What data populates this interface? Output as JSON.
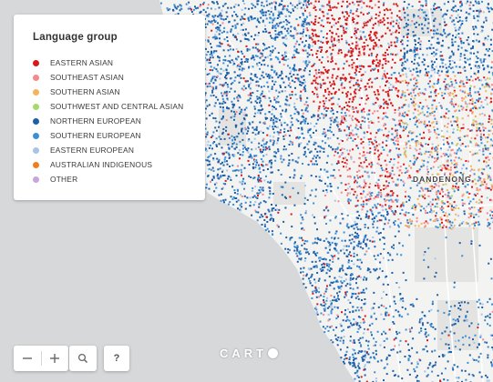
{
  "legend": {
    "title": "Language group",
    "items": [
      {
        "label": "EASTERN ASIAN",
        "color": "#d7191c"
      },
      {
        "label": "SOUTHEAST ASIAN",
        "color": "#f4888d"
      },
      {
        "label": "SOUTHERN ASIAN",
        "color": "#f2b55b"
      },
      {
        "label": "SOUTHWEST AND CENTRAL ASIAN",
        "color": "#a6d96a"
      },
      {
        "label": "NORTHERN EUROPEAN",
        "color": "#1f5fa8"
      },
      {
        "label": "SOUTHERN EUROPEAN",
        "color": "#3a8fd6"
      },
      {
        "label": "EASTERN EUROPEAN",
        "color": "#a9c3e6"
      },
      {
        "label": "AUSTRALIAN INDIGENOUS",
        "color": "#f07e1b"
      },
      {
        "label": "OTHER",
        "color": "#c9a6d9"
      }
    ]
  },
  "map": {
    "place_label": "DANDENONG",
    "water_color": "#d6d8da",
    "land_color": "#f3f3f1",
    "park_color": "#e6e6e4"
  },
  "controls": {
    "zoom_out_icon": "minus-icon",
    "zoom_in_icon": "plus-icon",
    "search_icon": "search-icon",
    "help_label": "?"
  },
  "attribution": {
    "logo_text": "CART"
  }
}
